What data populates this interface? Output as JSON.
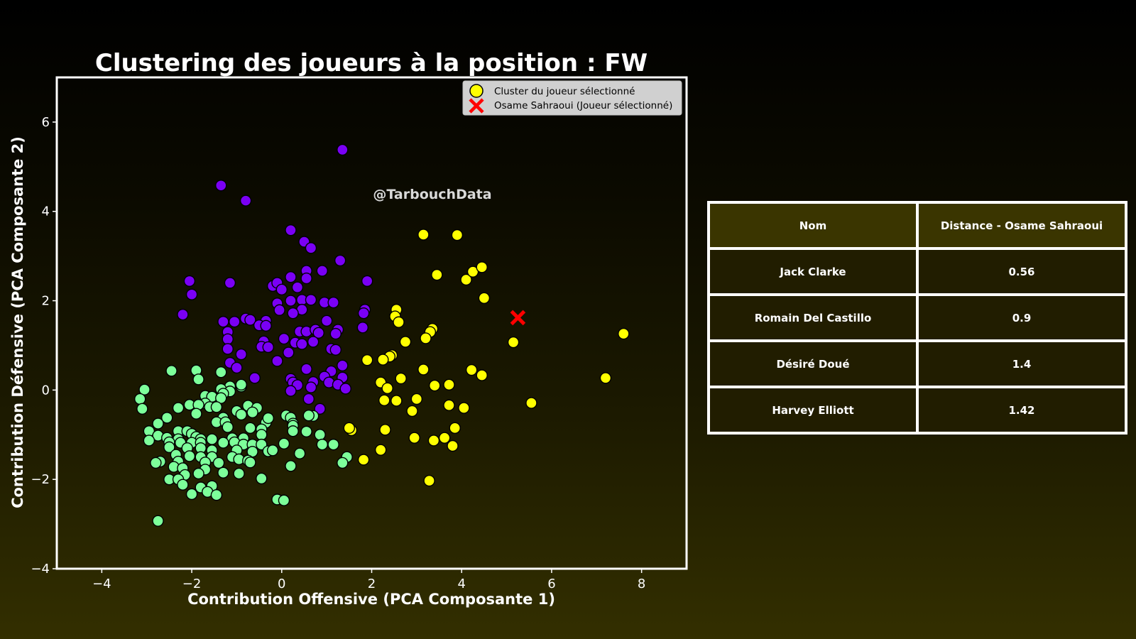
{
  "chart_data": {
    "type": "scatter",
    "title": "Clustering des joueurs à la position : FW",
    "xlabel": "Contribution Offensive (PCA Composante 1)",
    "ylabel": "Contribution Défensive (PCA Composante 2)",
    "xlim": [
      -5,
      9
    ],
    "ylim": [
      -4,
      7
    ],
    "xticks": [
      -4,
      -2,
      0,
      2,
      4,
      6,
      8
    ],
    "yticks": [
      -4,
      -2,
      0,
      2,
      4,
      6
    ],
    "xtick_labels": [
      "−4",
      "−2",
      "0",
      "2",
      "4",
      "6",
      "8"
    ],
    "ytick_labels": [
      "−4",
      "−2",
      "0",
      "2",
      "4",
      "6"
    ],
    "grid": false,
    "legend_position": "top-right",
    "watermark": "@TarbouchData",
    "legend": [
      {
        "label": "Cluster du joueur sélectionné",
        "marker": "circle",
        "color": "#ffff00"
      },
      {
        "label": "Osame Sahraoui (Joueur sélectionné)",
        "marker": "x",
        "color": "#ff0000"
      }
    ],
    "selected_player": {
      "name": "Osame Sahraoui",
      "x": 5.25,
      "y": 1.62,
      "color": "#ff0000"
    },
    "series": [
      {
        "name": "Cluster du joueur sélectionné",
        "color": "#ffff00",
        "points": [
          [
            3.15,
            3.48
          ],
          [
            3.9,
            3.47
          ],
          [
            3.45,
            2.58
          ],
          [
            4.1,
            2.47
          ],
          [
            4.25,
            2.65
          ],
          [
            4.45,
            2.75
          ],
          [
            4.5,
            2.06
          ],
          [
            2.55,
            1.8
          ],
          [
            2.52,
            1.65
          ],
          [
            2.6,
            1.52
          ],
          [
            3.35,
            1.37
          ],
          [
            3.3,
            1.3
          ],
          [
            3.2,
            1.16
          ],
          [
            2.75,
            1.08
          ],
          [
            5.15,
            1.07
          ],
          [
            7.6,
            1.26
          ],
          [
            2.45,
            0.78
          ],
          [
            2.4,
            0.75
          ],
          [
            2.25,
            0.68
          ],
          [
            1.9,
            0.67
          ],
          [
            3.15,
            0.46
          ],
          [
            4.22,
            0.45
          ],
          [
            4.45,
            0.33
          ],
          [
            2.65,
            0.26
          ],
          [
            7.2,
            0.27
          ],
          [
            2.2,
            0.17
          ],
          [
            3.4,
            0.1
          ],
          [
            3.72,
            0.12
          ],
          [
            2.35,
            0.04
          ],
          [
            3.0,
            -0.2
          ],
          [
            2.28,
            -0.23
          ],
          [
            2.55,
            -0.24
          ],
          [
            3.72,
            -0.34
          ],
          [
            4.05,
            -0.4
          ],
          [
            5.55,
            -0.29
          ],
          [
            2.9,
            -0.47
          ],
          [
            1.55,
            -0.9
          ],
          [
            1.5,
            -0.85
          ],
          [
            2.3,
            -0.89
          ],
          [
            3.85,
            -0.85
          ],
          [
            2.95,
            -1.07
          ],
          [
            3.38,
            -1.13
          ],
          [
            3.62,
            -1.07
          ],
          [
            3.8,
            -1.25
          ],
          [
            2.2,
            -1.34
          ],
          [
            1.82,
            -1.56
          ],
          [
            3.28,
            -2.03
          ]
        ]
      },
      {
        "name": "",
        "color": "#7a00f5",
        "points": [
          [
            1.35,
            5.38
          ],
          [
            -1.35,
            4.58
          ],
          [
            -0.8,
            4.24
          ],
          [
            0.2,
            3.58
          ],
          [
            0.5,
            3.32
          ],
          [
            0.65,
            3.18
          ],
          [
            1.3,
            2.9
          ],
          [
            0.9,
            2.67
          ],
          [
            0.55,
            2.67
          ],
          [
            0.2,
            2.53
          ],
          [
            0.55,
            2.5
          ],
          [
            1.9,
            2.44
          ],
          [
            -2.05,
            2.44
          ],
          [
            -1.15,
            2.4
          ],
          [
            -0.2,
            2.33
          ],
          [
            -0.1,
            2.4
          ],
          [
            0.35,
            2.3
          ],
          [
            0.0,
            2.25
          ],
          [
            -2.0,
            2.14
          ],
          [
            0.2,
            2.0
          ],
          [
            0.45,
            2.02
          ],
          [
            0.65,
            2.02
          ],
          [
            0.95,
            1.96
          ],
          [
            1.15,
            1.96
          ],
          [
            -0.1,
            1.94
          ],
          [
            -0.05,
            1.79
          ],
          [
            0.45,
            1.8
          ],
          [
            1.85,
            1.8
          ],
          [
            1.82,
            1.72
          ],
          [
            0.25,
            1.72
          ],
          [
            -2.2,
            1.69
          ],
          [
            -0.8,
            1.6
          ],
          [
            -0.7,
            1.57
          ],
          [
            -1.3,
            1.53
          ],
          [
            -1.05,
            1.53
          ],
          [
            -0.35,
            1.55
          ],
          [
            1.0,
            1.55
          ],
          [
            -0.5,
            1.45
          ],
          [
            -0.35,
            1.44
          ],
          [
            1.8,
            1.4
          ],
          [
            1.25,
            1.35
          ],
          [
            0.4,
            1.31
          ],
          [
            0.55,
            1.31
          ],
          [
            0.75,
            1.35
          ],
          [
            0.82,
            1.28
          ],
          [
            -1.2,
            1.3
          ],
          [
            1.2,
            1.26
          ],
          [
            -1.2,
            1.14
          ],
          [
            0.05,
            1.15
          ],
          [
            -0.4,
            1.09
          ],
          [
            0.3,
            1.06
          ],
          [
            0.45,
            1.03
          ],
          [
            0.7,
            1.08
          ],
          [
            -0.45,
            0.97
          ],
          [
            -0.3,
            0.96
          ],
          [
            -1.2,
            0.92
          ],
          [
            1.1,
            0.92
          ],
          [
            1.2,
            0.9
          ],
          [
            0.15,
            0.84
          ],
          [
            -0.9,
            0.8
          ],
          [
            -0.1,
            0.65
          ],
          [
            -1.15,
            0.61
          ],
          [
            -1.0,
            0.5
          ],
          [
            1.35,
            0.55
          ],
          [
            0.55,
            0.47
          ],
          [
            1.1,
            0.42
          ],
          [
            -0.6,
            0.27
          ],
          [
            0.95,
            0.3
          ],
          [
            1.35,
            0.28
          ],
          [
            0.2,
            0.25
          ],
          [
            0.25,
            0.17
          ],
          [
            0.7,
            0.18
          ],
          [
            1.05,
            0.17
          ],
          [
            0.35,
            0.11
          ],
          [
            1.25,
            0.12
          ],
          [
            1.42,
            0.03
          ],
          [
            0.65,
            0.06
          ],
          [
            0.2,
            -0.02
          ],
          [
            0.6,
            -0.2
          ],
          [
            0.85,
            -0.42
          ]
        ]
      },
      {
        "name": "",
        "color": "#7dff9a",
        "points": [
          [
            -3.05,
            0.01
          ],
          [
            -3.15,
            -0.2
          ],
          [
            -3.1,
            -0.42
          ],
          [
            -2.45,
            0.43
          ],
          [
            -1.9,
            0.44
          ],
          [
            -1.85,
            0.24
          ],
          [
            -1.35,
            0.4
          ],
          [
            -1.15,
            0.08
          ],
          [
            -0.9,
            0.08
          ],
          [
            -0.9,
            0.12
          ],
          [
            -1.35,
            0.02
          ],
          [
            -1.15,
            -0.03
          ],
          [
            -1.3,
            -0.08
          ],
          [
            -1.7,
            -0.13
          ],
          [
            -1.55,
            -0.15
          ],
          [
            -1.35,
            -0.18
          ],
          [
            -1.7,
            -0.3
          ],
          [
            -2.05,
            -0.33
          ],
          [
            -1.85,
            -0.33
          ],
          [
            -1.6,
            -0.38
          ],
          [
            -1.45,
            -0.38
          ],
          [
            -2.3,
            -0.4
          ],
          [
            -0.75,
            -0.35
          ],
          [
            -0.55,
            -0.4
          ],
          [
            -1.0,
            -0.47
          ],
          [
            -0.65,
            -0.5
          ],
          [
            -1.9,
            -0.53
          ],
          [
            -0.9,
            -0.55
          ],
          [
            -1.3,
            -0.62
          ],
          [
            -2.55,
            -0.62
          ],
          [
            -1.45,
            -0.72
          ],
          [
            -2.75,
            -0.75
          ],
          [
            -1.25,
            -0.72
          ],
          [
            -0.35,
            -0.73
          ],
          [
            -0.3,
            -0.63
          ],
          [
            -1.2,
            -0.83
          ],
          [
            -0.7,
            -0.85
          ],
          [
            -2.95,
            -0.92
          ],
          [
            -2.3,
            -0.92
          ],
          [
            -2.1,
            -0.92
          ],
          [
            -2.0,
            -0.98
          ],
          [
            -0.45,
            -0.88
          ],
          [
            -0.45,
            -1.0
          ],
          [
            -2.75,
            -1.02
          ],
          [
            -2.55,
            -1.07
          ],
          [
            -2.3,
            -1.1
          ],
          [
            -1.9,
            -1.05
          ],
          [
            -1.8,
            -1.1
          ],
          [
            -1.55,
            -1.1
          ],
          [
            -1.1,
            -1.08
          ],
          [
            -0.85,
            -1.08
          ],
          [
            -2.95,
            -1.13
          ],
          [
            -2.5,
            -1.17
          ],
          [
            -2.25,
            -1.18
          ],
          [
            -2.0,
            -1.18
          ],
          [
            -1.8,
            -1.18
          ],
          [
            -1.3,
            -1.18
          ],
          [
            -1.05,
            -1.17
          ],
          [
            -0.85,
            -1.22
          ],
          [
            -0.65,
            -1.22
          ],
          [
            -0.45,
            -1.22
          ],
          [
            -2.5,
            -1.28
          ],
          [
            -2.1,
            -1.3
          ],
          [
            -1.8,
            -1.3
          ],
          [
            -1.55,
            -1.35
          ],
          [
            -1.0,
            -1.35
          ],
          [
            -0.65,
            -1.38
          ],
          [
            -0.3,
            -1.37
          ],
          [
            -0.2,
            -1.35
          ],
          [
            -2.35,
            -1.45
          ],
          [
            -2.05,
            -1.48
          ],
          [
            -1.8,
            -1.5
          ],
          [
            -1.55,
            -1.5
          ],
          [
            -1.1,
            -1.5
          ],
          [
            -0.95,
            -1.55
          ],
          [
            -0.75,
            -1.58
          ],
          [
            -2.7,
            -1.6
          ],
          [
            -2.8,
            -1.63
          ],
          [
            -2.3,
            -1.6
          ],
          [
            -1.7,
            -1.62
          ],
          [
            -1.4,
            -1.63
          ],
          [
            -0.7,
            -1.62
          ],
          [
            -2.4,
            -1.72
          ],
          [
            -2.2,
            -1.75
          ],
          [
            -1.7,
            -1.78
          ],
          [
            -1.3,
            -1.85
          ],
          [
            -0.95,
            -1.87
          ],
          [
            -2.15,
            -1.9
          ],
          [
            -1.85,
            -1.87
          ],
          [
            -2.5,
            -2.0
          ],
          [
            -2.3,
            -2.0
          ],
          [
            -0.45,
            -1.98
          ],
          [
            -2.2,
            -2.12
          ],
          [
            -1.8,
            -2.18
          ],
          [
            -1.55,
            -2.15
          ],
          [
            -1.65,
            -2.28
          ],
          [
            -2.0,
            -2.33
          ],
          [
            -1.45,
            -2.35
          ],
          [
            -2.75,
            -2.93
          ],
          [
            0.1,
            -0.57
          ],
          [
            0.2,
            -0.62
          ],
          [
            0.25,
            -0.75
          ],
          [
            0.7,
            -0.58
          ],
          [
            0.6,
            -0.57
          ],
          [
            0.25,
            -0.8
          ],
          [
            0.25,
            -0.92
          ],
          [
            0.55,
            -0.93
          ],
          [
            0.85,
            -1.0
          ],
          [
            0.05,
            -1.2
          ],
          [
            0.9,
            -1.22
          ],
          [
            1.15,
            -1.22
          ],
          [
            0.4,
            -1.42
          ],
          [
            1.45,
            -1.5
          ],
          [
            1.35,
            -1.63
          ],
          [
            0.2,
            -1.7
          ],
          [
            -0.1,
            -2.45
          ],
          [
            0.05,
            -2.47
          ]
        ]
      }
    ]
  },
  "table": {
    "headers": [
      "Nom",
      "Distance - Osame Sahraoui"
    ],
    "rows": [
      [
        "Jack Clarke",
        "0.56"
      ],
      [
        "Romain Del Castillo",
        "0.9"
      ],
      [
        "Désiré Doué",
        "1.4"
      ],
      [
        "Harvey Elliott",
        "1.42"
      ]
    ]
  }
}
